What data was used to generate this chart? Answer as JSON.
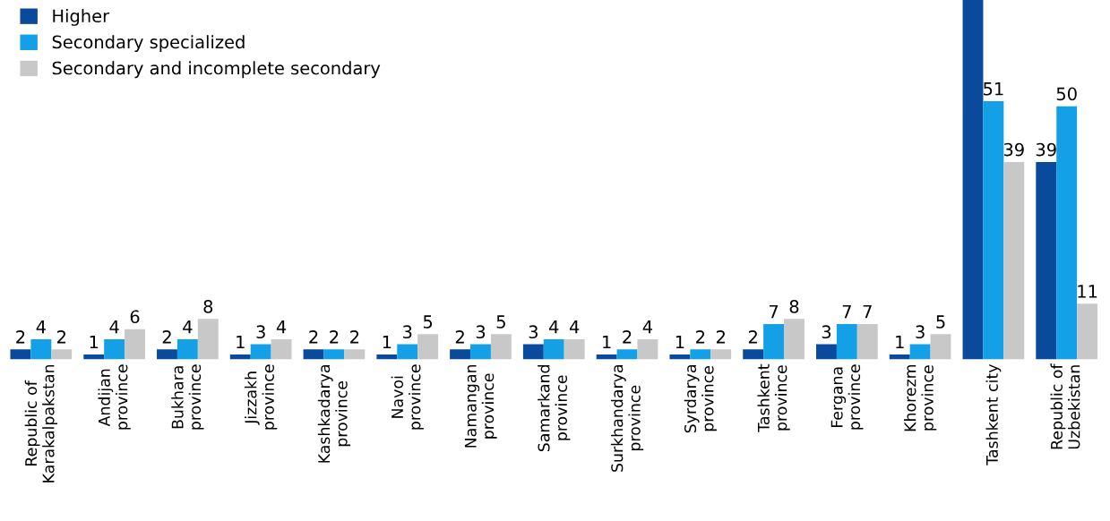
{
  "chart_data": {
    "type": "bar",
    "categories": [
      "Republic of\nKarakalpakstan",
      "Andijan\nprovince",
      "Bukhara\nprovince",
      "Jizzakh\nprovince",
      "Kashkadarya\nprovince",
      "Navoi\nprovince",
      "Namangan\nprovince",
      "Samarkand\nprovince",
      "Surkhandarya\nprovince",
      "Syrdarya\nprovince",
      "Tashkent\nprovince",
      "Fergana\nprovince",
      "Khorezm\nprovince",
      "Tashkent city",
      "Republic of\nUzbekistan"
    ],
    "series": [
      {
        "name": "Higher",
        "color": "#0a4a9c",
        "values": [
          2,
          1,
          2,
          1,
          2,
          1,
          2,
          3,
          1,
          1,
          2,
          3,
          1,
          71,
          39
        ],
        "value_labels": [
          "2",
          "1",
          "2",
          "1",
          "2",
          "1",
          "2",
          "3",
          "1",
          "1",
          "2",
          "3",
          "1",
          null,
          "39"
        ]
      },
      {
        "name": "Secondary specialized",
        "color": "#14a0e6",
        "values": [
          4,
          4,
          4,
          3,
          2,
          3,
          3,
          4,
          2,
          2,
          7,
          7,
          3,
          51,
          50
        ],
        "value_labels": [
          "4",
          "4",
          "4",
          "3",
          "2",
          "3",
          "3",
          "4",
          "2",
          "2",
          "7",
          "7",
          "3",
          "51",
          "50"
        ]
      },
      {
        "name": "Secondary and incomplete secondary",
        "color": "#c8c8c8",
        "values": [
          2,
          6,
          8,
          4,
          2,
          5,
          5,
          4,
          4,
          2,
          8,
          7,
          5,
          39,
          11
        ],
        "value_labels": [
          "2",
          "6",
          "8",
          "4",
          "2",
          "5",
          "5",
          "4",
          "4",
          "2",
          "8",
          "7",
          "5",
          "39",
          "11"
        ]
      }
    ],
    "ylim": [
      0,
      71
    ],
    "legend": "top left",
    "grid": false,
    "tick_labels": "x"
  }
}
